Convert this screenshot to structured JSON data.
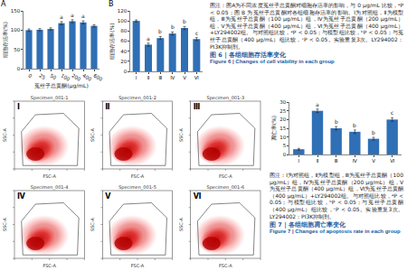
{
  "chart_data": [
    {
      "type": "bar",
      "panel_label": "A",
      "x_label": "菟丝子总黄酮(μg/mL)",
      "y_label": "细胞存活率(%)",
      "categories": [
        "0",
        "25",
        "50",
        "100",
        "200",
        "400",
        "600"
      ],
      "values": [
        100,
        101,
        103,
        118,
        123,
        120,
        111
      ],
      "errors": [
        3,
        3,
        3,
        4,
        4,
        4,
        3
      ],
      "annotations": [
        null,
        null,
        null,
        "a",
        "a",
        "a",
        null
      ],
      "color": "#2f6fb5",
      "ylim": [
        0,
        150
      ],
      "yticks": [
        0,
        50,
        100,
        150
      ],
      "grid": false
    },
    {
      "type": "bar",
      "panel_label": "B",
      "y_label": "细胞存活率(%)",
      "categories": [
        "Ⅰ",
        "Ⅱ",
        "Ⅲ",
        "Ⅳ",
        "Ⅴ",
        "Ⅵ"
      ],
      "values": [
        100,
        53,
        66,
        75,
        86,
        64
      ],
      "errors": [
        2,
        3,
        3,
        3,
        3,
        3
      ],
      "annotations": [
        null,
        "a",
        "b",
        "b",
        "b",
        "c"
      ],
      "color": "#2f6fb5",
      "ylim": [
        0,
        120
      ],
      "yticks": [
        0,
        20,
        40,
        60,
        80,
        100,
        120
      ],
      "grid": false
    },
    {
      "type": "bar",
      "y_label": "凋亡率(%)",
      "categories": [
        "Ⅰ",
        "Ⅱ",
        "Ⅲ",
        "Ⅳ",
        "Ⅴ",
        "Ⅵ"
      ],
      "values": [
        3,
        25,
        15,
        13,
        9,
        20
      ],
      "errors": [
        0.5,
        1,
        1,
        1,
        0.8,
        1
      ],
      "annotations": [
        null,
        "a",
        "b",
        "b",
        "b",
        "c"
      ],
      "color": "#2f6fb5",
      "ylim": [
        0,
        30
      ],
      "yticks": [
        0,
        5,
        10,
        15,
        20,
        25,
        30
      ],
      "grid": false
    }
  ],
  "flow_panels": [
    {
      "label": "Ⅰ",
      "specimen": "Specimen_001-1",
      "x_label": "FSC-A",
      "y_label": "SSC-A"
    },
    {
      "label": "Ⅱ",
      "specimen": "Specimen_001-2",
      "x_label": "FSC-A",
      "y_label": "SSC-A"
    },
    {
      "label": "Ⅲ",
      "specimen": "Specimen_001-3",
      "x_label": "FSC-A",
      "y_label": "SSC-A"
    },
    {
      "label": "Ⅳ",
      "specimen": "Specimen_001-4",
      "x_label": "FSC-A",
      "y_label": "SSC-A"
    },
    {
      "label": "Ⅴ",
      "specimen": "Specimen_001-5",
      "x_label": "FSC-A",
      "y_label": "SSC-A"
    },
    {
      "label": "Ⅵ",
      "specimen": "Specimen_001-6",
      "x_label": "FSC-A",
      "y_label": "SSC-A"
    }
  ],
  "figure6": {
    "caption": "图注：图A为不同浓度菟丝子总黄酮对细胞存活率的影响，与 0 μg/mL 比较，ᵃP < 0.05；图 B 为菟丝子总黄酮对各组细胞存活率的影响。Ⅰ为对照组，Ⅱ为模型组，Ⅲ为菟丝子总黄酮（100 μg/mL）组，Ⅳ为菟丝子总黄酮（200 μg/mL）组，Ⅴ为菟丝子总黄酮（400 μg/mL）组，Ⅵ为菟丝子总黄酮（400 μg/mL）+LY294002组。与对照组比较，ᵃP < 0.05；与模型组比较，ᵇP < 0.05；与菟丝子总黄酮（400 μg/mL）组比较，ᶜP < 0.05。实验重复3次。LY294002：PI3K抑制剂。",
    "title_cn": "图 6｜各组细胞存活率变化",
    "title_en": "Figure 6 | Changes of cell viability in each group"
  },
  "figure7": {
    "caption": "图注：Ⅰ为对照组，Ⅱ为模型组，Ⅲ为菟丝子总黄酮（100 μg/mL）组，Ⅳ为菟丝子总黄酮（200 μg/mL）组，Ⅴ为菟丝子总黄酮（400 μg/mL）组，Ⅵ为菟丝子总黄酮（400 μg/mL）+LY294002组。与对照组比较，ᵃP < 0.05；与模型组比较，ᵇP < 0.05；与菟丝子总黄酮（400 μg/mL）组比较，ᶜP < 0.05。实验重复3次。LY294002：PI3K抑制剂。",
    "title_cn": "图 7｜各组细胞凋亡率变化",
    "title_en": "Figure 7 | Changes of apoptosis rate in each group"
  }
}
